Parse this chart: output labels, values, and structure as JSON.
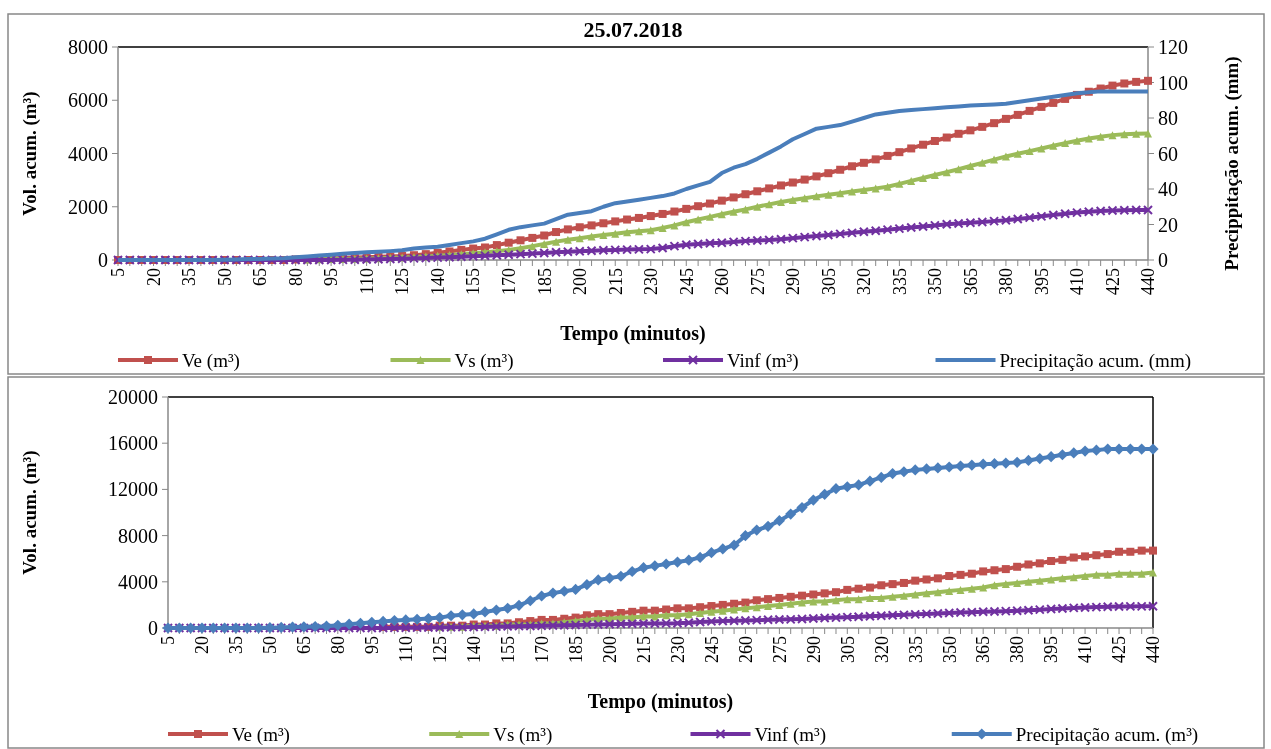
{
  "chart_data": [
    {
      "type": "line",
      "title": "25.07.2018",
      "xlabel": "Tempo (minutos)",
      "ylabel": "Vol. acum. (m³)",
      "y2label": "Precippitação acum. (mm)",
      "categories": [
        "5",
        null,
        null,
        "20",
        null,
        null,
        "35",
        null,
        null,
        "50",
        null,
        null,
        "65",
        null,
        null,
        "80",
        null,
        null,
        "95",
        null,
        null,
        "110",
        null,
        null,
        "125",
        null,
        null,
        "140",
        null,
        null,
        "155",
        null,
        null,
        "170",
        null,
        null,
        "185",
        null,
        null,
        "200",
        null,
        null,
        "215",
        null,
        null,
        "230",
        null,
        null,
        "245",
        null,
        null,
        "260",
        null,
        null,
        "275",
        null,
        null,
        "290",
        null,
        null,
        "305",
        null,
        null,
        "320",
        null,
        null,
        "335",
        null,
        null,
        "350",
        null,
        null,
        "365",
        null,
        null,
        "380",
        null,
        null,
        "395",
        null,
        null,
        "410",
        null,
        null,
        "425",
        null,
        null,
        "440"
      ],
      "ylim": [
        0,
        8000
      ],
      "yticks": [
        0,
        2000,
        4000,
        6000,
        8000
      ],
      "y2lim": [
        0,
        120
      ],
      "y2ticks": [
        0,
        20,
        40,
        60,
        80,
        100,
        120
      ],
      "legend": "bottom",
      "grid": false,
      "series": [
        {
          "name": "Ve (m³)",
          "color": "#c0504d",
          "marker": "square",
          "values": [
            0,
            0,
            0,
            0,
            0,
            0,
            0,
            0,
            0,
            0,
            0,
            0,
            0,
            0,
            0,
            20,
            30,
            45,
            60,
            75,
            90,
            105,
            120,
            135,
            150,
            180,
            220,
            270,
            320,
            380,
            430,
            470,
            560,
            650,
            740,
            830,
            920,
            1050,
            1150,
            1230,
            1300,
            1380,
            1450,
            1520,
            1580,
            1650,
            1730,
            1820,
            1920,
            2020,
            2120,
            2230,
            2350,
            2470,
            2580,
            2690,
            2800,
            2910,
            3020,
            3140,
            3260,
            3390,
            3520,
            3650,
            3780,
            3910,
            4050,
            4190,
            4330,
            4470,
            4600,
            4740,
            4870,
            5000,
            5140,
            5300,
            5450,
            5600,
            5750,
            5900,
            6050,
            6200,
            6320,
            6440,
            6550,
            6630,
            6690,
            6730
          ]
        },
        {
          "name": "Vs (m³)",
          "color": "#9bbb59",
          "marker": "triangle",
          "values": [
            null,
            null,
            null,
            null,
            null,
            null,
            null,
            null,
            null,
            null,
            null,
            null,
            null,
            null,
            null,
            null,
            20,
            30,
            35,
            40,
            50,
            60,
            70,
            80,
            95,
            110,
            135,
            160,
            190,
            220,
            255,
            290,
            330,
            380,
            440,
            520,
            600,
            690,
            760,
            820,
            880,
            940,
            990,
            1040,
            1080,
            1120,
            1200,
            1300,
            1420,
            1520,
            1620,
            1720,
            1810,
            1900,
            2000,
            2090,
            2180,
            2250,
            2320,
            2390,
            2450,
            2510,
            2570,
            2630,
            2690,
            2750,
            2860,
            2970,
            3080,
            3190,
            3300,
            3410,
            3530,
            3650,
            3770,
            3890,
            3990,
            4090,
            4190,
            4290,
            4390,
            4480,
            4560,
            4630,
            4690,
            4720,
            4740,
            4750
          ]
        },
        {
          "name": "Vinf (m³)",
          "color": "#7030a0",
          "marker": "cross",
          "values": [
            0,
            0,
            0,
            0,
            0,
            0,
            0,
            0,
            0,
            0,
            0,
            0,
            0,
            0,
            0,
            0,
            0,
            0,
            0,
            5,
            10,
            20,
            30,
            40,
            50,
            60,
            75,
            90,
            105,
            120,
            140,
            160,
            180,
            200,
            220,
            240,
            265,
            290,
            310,
            330,
            350,
            365,
            380,
            390,
            400,
            410,
            450,
            520,
            570,
            600,
            630,
            650,
            680,
            710,
            730,
            750,
            780,
            820,
            860,
            900,
            940,
            980,
            1020,
            1060,
            1100,
            1140,
            1180,
            1220,
            1260,
            1300,
            1340,
            1370,
            1400,
            1430,
            1460,
            1495,
            1540,
            1590,
            1640,
            1690,
            1740,
            1780,
            1810,
            1840,
            1860,
            1870,
            1875,
            1880
          ]
        },
        {
          "name": "Precipitação acum. (mm)",
          "color": "#4a7ebb",
          "axis": "y2",
          "values": [
            0,
            0,
            0,
            0,
            0,
            0,
            0,
            0,
            0,
            0.2,
            0.3,
            0.5,
            0.6,
            0.8,
            1,
            1.5,
            2,
            2.5,
            3,
            3.5,
            4,
            4.3,
            4.6,
            5,
            5.5,
            6.5,
            7,
            7.5,
            8.5,
            9.5,
            10.5,
            12,
            14.5,
            17,
            18.5,
            19.5,
            20.5,
            23,
            25.5,
            26.5,
            27.5,
            30,
            32,
            33,
            34,
            35,
            36,
            37.5,
            40,
            42,
            44,
            49,
            52,
            54,
            57,
            60.5,
            64,
            68,
            71,
            74,
            75,
            76,
            78,
            80,
            82,
            83,
            84,
            84.5,
            85,
            85.5,
            86,
            86.5,
            87,
            87.3,
            87.6,
            88,
            89,
            90,
            91,
            92,
            93,
            94,
            94.5,
            95,
            95,
            95,
            95,
            95
          ]
        }
      ]
    },
    {
      "type": "line",
      "xlabel": "Tempo (minutos)",
      "ylabel": "Vol. acum. (m³)",
      "categories": [
        "5",
        null,
        null,
        "20",
        null,
        null,
        "35",
        null,
        null,
        "50",
        null,
        null,
        "65",
        null,
        null,
        "80",
        null,
        null,
        "95",
        null,
        null,
        "110",
        null,
        null,
        "125",
        null,
        null,
        "140",
        null,
        null,
        "155",
        null,
        null,
        "170",
        null,
        null,
        "185",
        null,
        null,
        "200",
        null,
        null,
        "215",
        null,
        null,
        "230",
        null,
        null,
        "245",
        null,
        null,
        "260",
        null,
        null,
        "275",
        null,
        null,
        "290",
        null,
        null,
        "305",
        null,
        null,
        "320",
        null,
        null,
        "335",
        null,
        null,
        "350",
        null,
        null,
        "365",
        null,
        null,
        "380",
        null,
        null,
        "395",
        null,
        null,
        "410",
        null,
        null,
        "425",
        null,
        null,
        "440"
      ],
      "ylim": [
        0,
        20000
      ],
      "yticks": [
        0,
        4000,
        8000,
        12000,
        16000,
        20000
      ],
      "legend": "bottom",
      "grid": false,
      "series": [
        {
          "name": "Ve (m³)",
          "color": "#c0504d",
          "marker": "square",
          "values": [
            null,
            null,
            null,
            null,
            null,
            null,
            null,
            null,
            null,
            null,
            null,
            null,
            null,
            null,
            null,
            null,
            null,
            null,
            null,
            100,
            100,
            100,
            100,
            100,
            200,
            200,
            200,
            300,
            300,
            400,
            400,
            500,
            600,
            700,
            700,
            800,
            900,
            1100,
            1200,
            1200,
            1300,
            1400,
            1500,
            1500,
            1600,
            1700,
            1700,
            1800,
            1900,
            2000,
            2100,
            2200,
            2400,
            2500,
            2600,
            2700,
            2800,
            2900,
            3000,
            3100,
            3300,
            3400,
            3500,
            3700,
            3800,
            3900,
            4100,
            4200,
            4300,
            4500,
            4600,
            4700,
            4900,
            5000,
            5100,
            5300,
            5500,
            5600,
            5800,
            5900,
            6100,
            6200,
            6300,
            6400,
            6600,
            6600,
            6700,
            6700
          ]
        },
        {
          "name": "Vs (m³)",
          "color": "#9bbb59",
          "marker": "triangle",
          "values": [
            null,
            null,
            null,
            null,
            null,
            null,
            null,
            null,
            null,
            null,
            null,
            null,
            null,
            null,
            null,
            null,
            null,
            null,
            null,
            null,
            null,
            null,
            null,
            null,
            100,
            100,
            100,
            200,
            200,
            200,
            300,
            300,
            300,
            400,
            400,
            500,
            600,
            700,
            800,
            800,
            900,
            900,
            1000,
            1000,
            1100,
            1100,
            1200,
            1300,
            1400,
            1500,
            1600,
            1700,
            1800,
            1900,
            2000,
            2100,
            2200,
            2300,
            2300,
            2400,
            2500,
            2500,
            2600,
            2600,
            2700,
            2800,
            2900,
            3000,
            3100,
            3200,
            3300,
            3400,
            3500,
            3700,
            3800,
            3900,
            4000,
            4100,
            4200,
            4300,
            4400,
            4500,
            4600,
            4600,
            4700,
            4700,
            4700,
            4800
          ]
        },
        {
          "name": "Vinf (m³)",
          "color": "#7030a0",
          "marker": "cross",
          "values": [
            0,
            0,
            0,
            0,
            0,
            0,
            0,
            0,
            0,
            0,
            0,
            0,
            0,
            0,
            0,
            0,
            0,
            0,
            0,
            5,
            10,
            20,
            30,
            40,
            50,
            60,
            75,
            90,
            105,
            120,
            140,
            160,
            180,
            200,
            220,
            240,
            265,
            290,
            310,
            330,
            350,
            365,
            380,
            390,
            400,
            410,
            450,
            520,
            570,
            600,
            630,
            650,
            680,
            710,
            730,
            750,
            780,
            820,
            860,
            900,
            940,
            980,
            1020,
            1060,
            1100,
            1140,
            1180,
            1220,
            1260,
            1300,
            1340,
            1370,
            1400,
            1430,
            1460,
            1495,
            1540,
            1590,
            1640,
            1690,
            1740,
            1780,
            1810,
            1840,
            1860,
            1870,
            1875,
            1880
          ]
        },
        {
          "name": "Precipitação acum. (m³)",
          "color": "#4a7ebb",
          "marker": "diamond",
          "values": [
            0,
            0,
            0,
            0,
            0,
            0,
            0,
            0,
            0,
            30,
            50,
            80,
            100,
            130,
            160,
            240,
            330,
            410,
            490,
            570,
            650,
            700,
            750,
            820,
            900,
            1060,
            1140,
            1220,
            1390,
            1550,
            1710,
            1960,
            2360,
            2770,
            3020,
            3180,
            3340,
            3750,
            4160,
            4320,
            4480,
            4890,
            5220,
            5380,
            5540,
            5710,
            5870,
            6110,
            6520,
            6850,
            7170,
            7990,
            8480,
            8800,
            9290,
            9860,
            10430,
            11080,
            11570,
            12060,
            12230,
            12390,
            12710,
            13040,
            13370,
            13530,
            13690,
            13770,
            13860,
            13940,
            14020,
            14100,
            14180,
            14230,
            14280,
            14340,
            14510,
            14670,
            14830,
            15000,
            15160,
            15320,
            15400,
            15490,
            15490,
            15490,
            15490,
            15490
          ]
        }
      ]
    }
  ]
}
